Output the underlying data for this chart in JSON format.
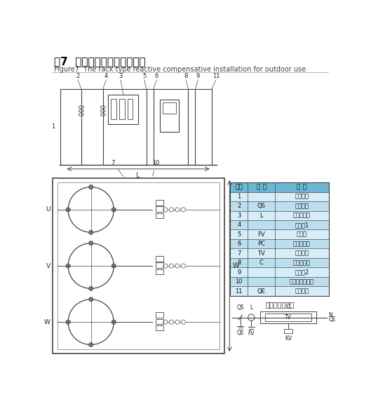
{
  "title": "图7  户外组架式无功补偿装置",
  "subtitle": "Figure7  The rack type reactive compensative installation for outdoor use",
  "table_header": [
    "项号",
    "代 号",
    "名 称"
  ],
  "table_rows": [
    [
      "1",
      "",
      "网状遮栏"
    ],
    [
      "2",
      "QS",
      "隔离开关"
    ],
    [
      "3",
      "L",
      "串联电抗器"
    ],
    [
      "4",
      "",
      "绝缘子1"
    ],
    [
      "5",
      "FV",
      "避雷器"
    ],
    [
      "6",
      "PC",
      "放电计数器"
    ],
    [
      "7",
      "TV",
      "放电线圈"
    ],
    [
      "8",
      "C",
      "并联电容器"
    ],
    [
      "9",
      "",
      "绝缘子2"
    ],
    [
      "10",
      "",
      "钢筋混凝土台基"
    ],
    [
      "11",
      "QE",
      "接地开关"
    ]
  ],
  "schematic_title": "电气接线原理图",
  "header_bg": "#6BB8D4",
  "row_bg_light": "#D6EEF8",
  "row_bg_mid": "#BCDFF0",
  "bg_color": "#ffffff",
  "lc": "#444444"
}
